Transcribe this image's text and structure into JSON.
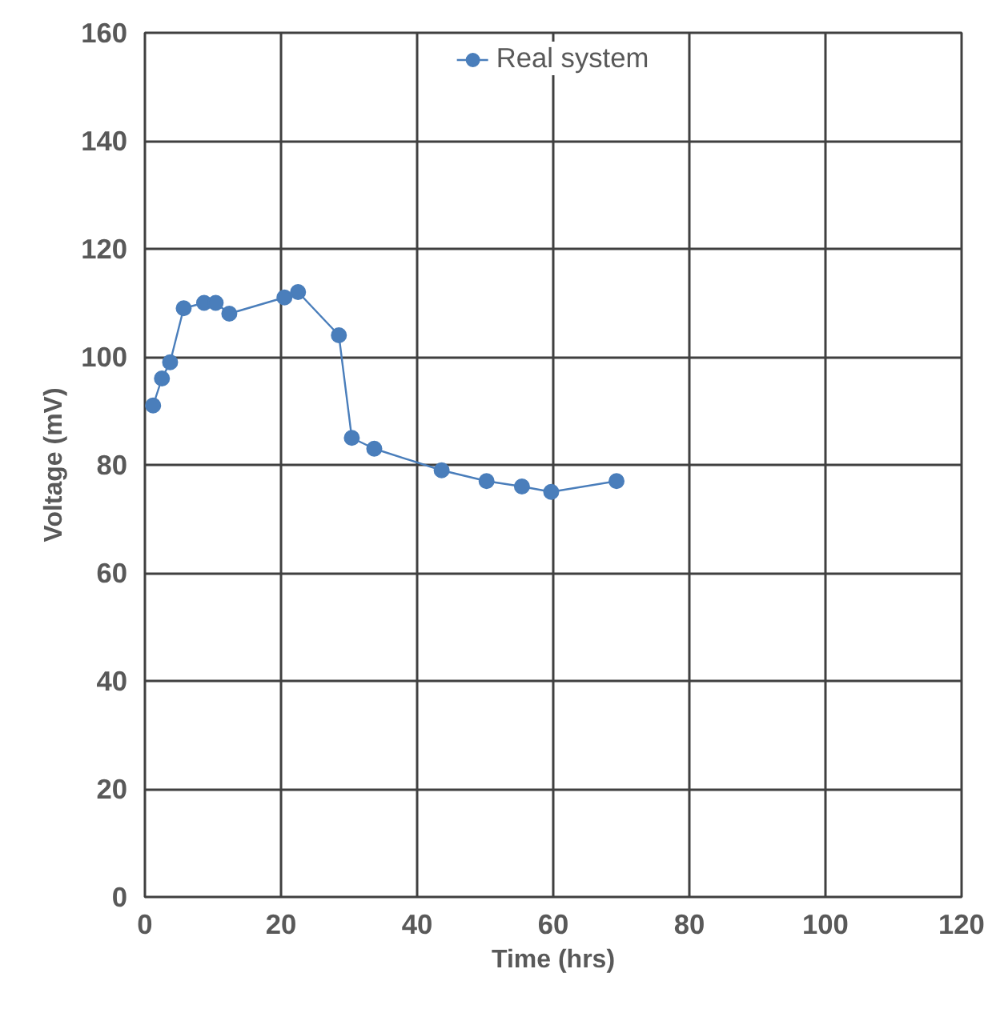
{
  "chart_data": {
    "type": "line",
    "xlabel": "Time (hrs)",
    "ylabel": "Voltage (mV)",
    "xlim": [
      0,
      120
    ],
    "xticks": [
      0,
      20,
      40,
      60,
      80,
      100,
      120
    ],
    "ylim": [
      0,
      160
    ],
    "yticks": [
      0,
      20,
      40,
      60,
      80,
      100,
      120,
      140,
      160
    ],
    "grid": true,
    "legend": "top",
    "marker": "circle",
    "line_style": "solid",
    "series": [
      {
        "name": "Real system",
        "color": "#4a7ebb",
        "x": [
          1.2,
          2.5,
          3.7,
          5.7,
          8.7,
          10.4,
          12.4,
          20.5,
          22.5,
          28.5,
          30.4,
          33.7,
          43.6,
          50.2,
          55.4,
          59.7,
          69.3
        ],
        "values": [
          91,
          96,
          99,
          109,
          110,
          110,
          108,
          111,
          112,
          104,
          85,
          83,
          79,
          77,
          76,
          75,
          77
        ]
      }
    ]
  }
}
